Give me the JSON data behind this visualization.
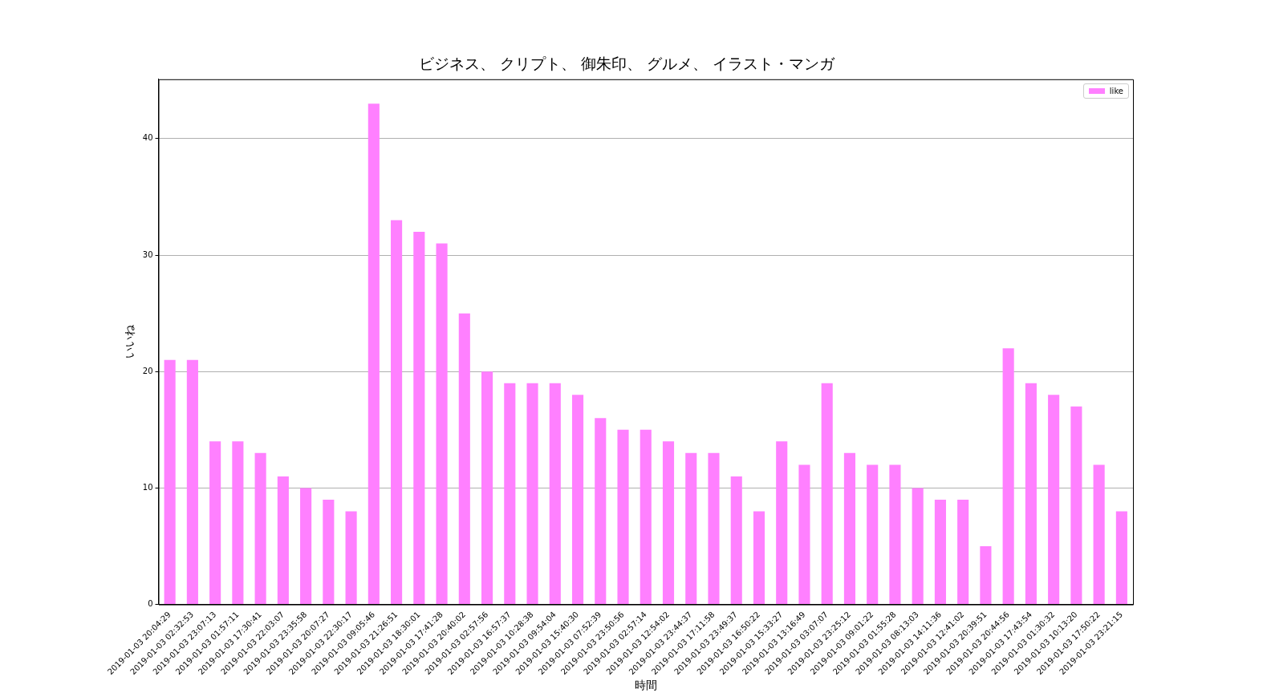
{
  "chart_data": {
    "type": "bar",
    "title": "ビジネス、 クリプト、 御朱印、 グルメ、 イラスト・マンガ",
    "xlabel": "時間",
    "ylabel": "いいね",
    "categories": [
      "2019-01-03 20:04:29",
      "2019-01-03 02:32:53",
      "2019-01-03 23:07:13",
      "2019-01-03 01:57:11",
      "2019-01-03 17:30:41",
      "2019-01-03 22:03:07",
      "2019-01-03 23:35:58",
      "2019-01-03 20:07:27",
      "2019-01-03 22:30:17",
      "2019-01-03 09:05:46",
      "2019-01-03 21:26:51",
      "2019-01-03 18:30:01",
      "2019-01-03 17:41:28",
      "2019-01-03 20:40:02",
      "2019-01-03 02:57:56",
      "2019-01-03 16:57:37",
      "2019-01-03 10:28:38",
      "2019-01-03 09:54:04",
      "2019-01-03 15:40:30",
      "2019-01-03 07:52:39",
      "2019-01-03 23:50:56",
      "2019-01-03 02:57:14",
      "2019-01-03 12:54:02",
      "2019-01-03 23:44:37",
      "2019-01-03 17:11:58",
      "2019-01-03 23:49:37",
      "2019-01-03 16:50:22",
      "2019-01-03 15:33:27",
      "2019-01-03 13:16:49",
      "2019-01-03 03:07:07",
      "2019-01-03 23:25:12",
      "2019-01-03 09:01:22",
      "2019-01-03 01:55:28",
      "2019-01-03 08:13:03",
      "2019-01-03 14:11:36",
      "2019-01-03 12:41:02",
      "2019-01-03 20:39:51",
      "2019-01-03 20:44:56",
      "2019-01-03 17:43:54",
      "2019-01-03 01:30:32",
      "2019-01-03 10:13:20",
      "2019-01-03 17:50:22",
      "2019-01-03 23:21:15"
    ],
    "series": [
      {
        "name": "like",
        "color": "#ff80ff",
        "values": [
          21,
          21,
          14,
          14,
          13,
          11,
          10,
          9,
          8,
          43,
          33,
          32,
          31,
          25,
          20,
          19,
          19,
          19,
          18,
          16,
          15,
          15,
          14,
          13,
          13,
          11,
          8,
          14,
          12,
          19,
          13,
          12,
          12,
          10,
          9,
          9,
          5,
          22,
          19,
          18,
          17,
          12,
          8
        ]
      }
    ],
    "ylim": [
      0,
      45.1
    ],
    "yticks": [
      0,
      10,
      20,
      30,
      40
    ],
    "grid": "y",
    "legend": "top right"
  }
}
